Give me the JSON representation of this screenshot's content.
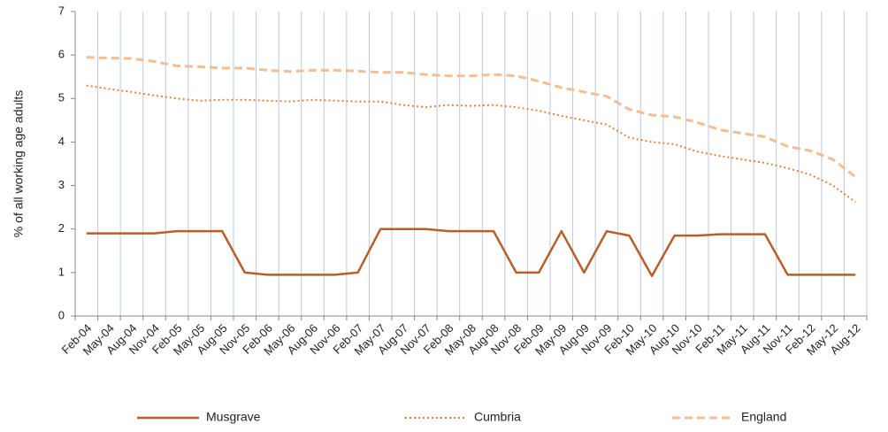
{
  "chart_data": {
    "type": "line",
    "ylabel": "% of all working age adults",
    "categories": [
      "Feb-04",
      "May-04",
      "Aug-04",
      "Nov-04",
      "Feb-05",
      "May-05",
      "Aug-05",
      "Nov-05",
      "Feb-06",
      "May-06",
      "Aug-06",
      "Nov-06",
      "Feb-07",
      "May-07",
      "Aug-07",
      "Nov-07",
      "Feb-08",
      "May-08",
      "Aug-08",
      "Nov-08",
      "Feb-09",
      "May-09",
      "Aug-09",
      "Nov-09",
      "Feb-10",
      "May-10",
      "Aug-10",
      "Nov-10",
      "Feb-11",
      "May-11",
      "Aug-11",
      "Nov-11",
      "Feb-12",
      "May-12",
      "Aug-12"
    ],
    "series": [
      {
        "name": "Musgrave",
        "color": "#bb5e26",
        "dash": "solid",
        "values": [
          1.9,
          1.9,
          1.9,
          1.9,
          1.95,
          1.95,
          1.95,
          1.0,
          0.95,
          0.95,
          0.95,
          0.95,
          1.0,
          2.0,
          2.0,
          2.0,
          1.95,
          1.95,
          1.95,
          1.0,
          1.0,
          1.95,
          1.0,
          1.95,
          1.85,
          0.92,
          1.85,
          1.85,
          1.88,
          1.88,
          1.88,
          0.95,
          0.95,
          0.95,
          0.95
        ]
      },
      {
        "name": "Cumbria",
        "color": "#e2843a",
        "dash": "dotted",
        "values": [
          5.3,
          5.22,
          5.15,
          5.07,
          5.0,
          4.95,
          4.97,
          4.97,
          4.95,
          4.93,
          4.97,
          4.95,
          4.93,
          4.93,
          4.85,
          4.8,
          4.85,
          4.83,
          4.85,
          4.8,
          4.72,
          4.6,
          4.5,
          4.4,
          4.1,
          4.0,
          3.95,
          3.78,
          3.68,
          3.6,
          3.52,
          3.4,
          3.25,
          3.0,
          2.62
        ]
      },
      {
        "name": "England",
        "color": "#f5bd93",
        "dash": "dashed",
        "values": [
          5.95,
          5.93,
          5.92,
          5.85,
          5.75,
          5.73,
          5.7,
          5.7,
          5.65,
          5.62,
          5.65,
          5.65,
          5.63,
          5.6,
          5.6,
          5.55,
          5.52,
          5.52,
          5.55,
          5.52,
          5.4,
          5.25,
          5.15,
          5.05,
          4.75,
          4.62,
          4.58,
          4.45,
          4.28,
          4.2,
          4.12,
          3.9,
          3.8,
          3.6,
          3.2
        ]
      }
    ],
    "ylim": [
      0,
      7
    ],
    "yticks": [
      0,
      1,
      2,
      3,
      4,
      5,
      6,
      7
    ],
    "grid": true,
    "grid_axis": "x",
    "legend": "bottom"
  }
}
